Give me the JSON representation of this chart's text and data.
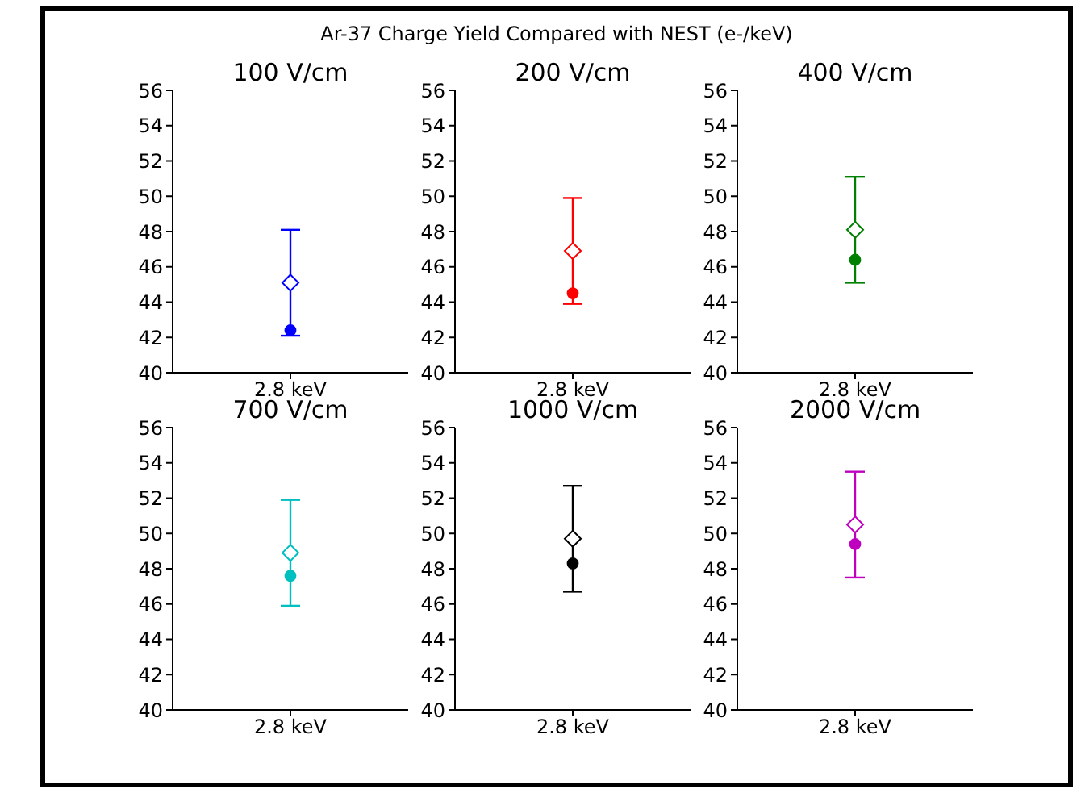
{
  "chart_data": [
    {
      "type": "scatter",
      "title": "100 V/cm",
      "annotations": [
        "Ar-37 Charge Yield Compared with NEST (e-/keV)"
      ],
      "categories": [
        "2.8 keV"
      ],
      "ylim": [
        40,
        56
      ],
      "yticks": [
        40,
        42,
        44,
        46,
        48,
        50,
        52,
        54,
        56
      ],
      "grid": false,
      "legend": false,
      "series": [
        {
          "color": "#0000ff",
          "values": [
            45.1
          ],
          "errors": [
            3
          ],
          "marker": "diamond"
        },
        {
          "color": "#0000ff",
          "values": [
            42.4
          ],
          "marker": "circle"
        }
      ]
    },
    {
      "type": "scatter",
      "title": "200 V/cm",
      "categories": [
        "2.8 keV"
      ],
      "ylim": [
        40,
        56
      ],
      "yticks": [
        40,
        42,
        44,
        46,
        48,
        50,
        52,
        54,
        56
      ],
      "grid": false,
      "legend": false,
      "series": [
        {
          "color": "#ff0000",
          "values": [
            46.9
          ],
          "errors": [
            3
          ],
          "marker": "diamond"
        },
        {
          "color": "#ff0000",
          "values": [
            44.5
          ],
          "marker": "circle"
        }
      ]
    },
    {
      "type": "scatter",
      "title": "400 V/cm",
      "categories": [
        "2.8 keV"
      ],
      "ylim": [
        40,
        56
      ],
      "yticks": [
        40,
        42,
        44,
        46,
        48,
        50,
        52,
        54,
        56
      ],
      "grid": false,
      "legend": false,
      "series": [
        {
          "color": "#008000",
          "values": [
            48.1
          ],
          "errors": [
            3
          ],
          "marker": "diamond"
        },
        {
          "color": "#008000",
          "values": [
            46.4
          ],
          "marker": "circle"
        }
      ]
    },
    {
      "type": "scatter",
      "title": "700 V/cm",
      "categories": [
        "2.8 keV"
      ],
      "ylim": [
        40,
        56
      ],
      "yticks": [
        40,
        42,
        44,
        46,
        48,
        50,
        52,
        54,
        56
      ],
      "grid": false,
      "legend": false,
      "series": [
        {
          "color": "#00bfbf",
          "values": [
            48.9
          ],
          "errors": [
            3
          ],
          "marker": "diamond"
        },
        {
          "color": "#00bfbf",
          "values": [
            47.6
          ],
          "marker": "circle"
        }
      ]
    },
    {
      "type": "scatter",
      "title": "1000 V/cm",
      "categories": [
        "2.8 keV"
      ],
      "ylim": [
        40,
        56
      ],
      "yticks": [
        40,
        42,
        44,
        46,
        48,
        50,
        52,
        54,
        56
      ],
      "grid": false,
      "legend": false,
      "series": [
        {
          "color": "#000000",
          "values": [
            49.7
          ],
          "errors": [
            3
          ],
          "marker": "diamond"
        },
        {
          "color": "#000000",
          "values": [
            48.3
          ],
          "marker": "circle"
        }
      ]
    },
    {
      "type": "scatter",
      "title": "2000 V/cm",
      "categories": [
        "2.8 keV"
      ],
      "ylim": [
        40,
        56
      ],
      "yticks": [
        40,
        42,
        44,
        46,
        48,
        50,
        52,
        54,
        56
      ],
      "grid": false,
      "legend": false,
      "series": [
        {
          "color": "#bf00bf",
          "values": [
            50.5
          ],
          "errors": [
            3
          ],
          "marker": "diamond"
        },
        {
          "color": "#bf00bf",
          "values": [
            49.4
          ],
          "marker": "circle"
        }
      ]
    }
  ]
}
